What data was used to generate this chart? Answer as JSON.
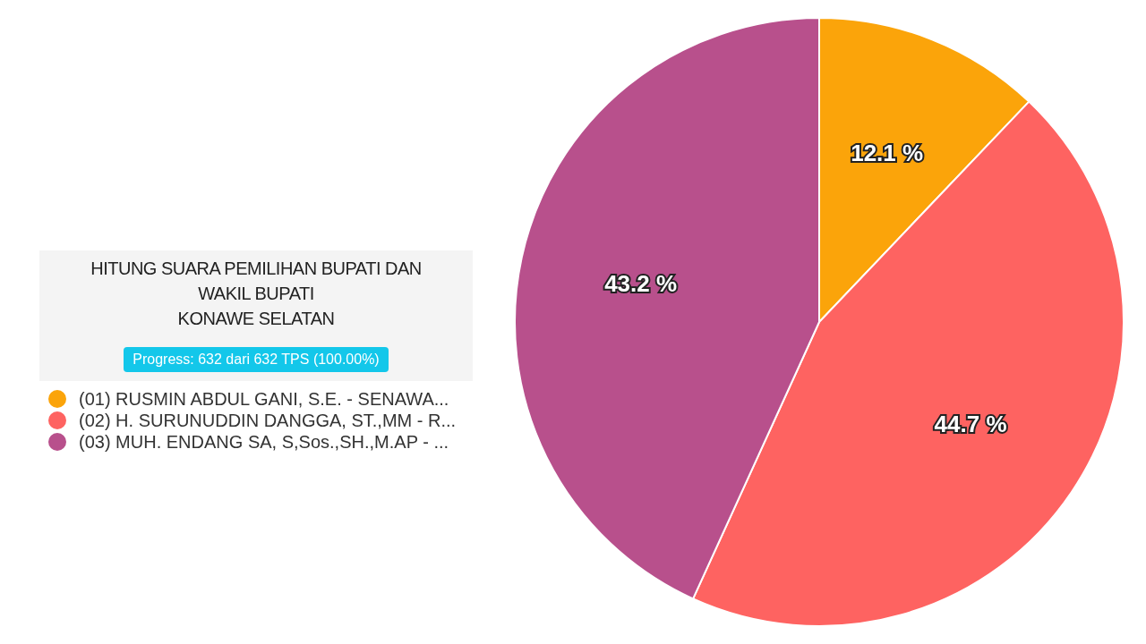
{
  "chart_data": {
    "type": "pie",
    "title": "HITUNG SUARA PEMILIHAN BUPATI DAN WAKIL BUPATI\nKONAWE SELATAN",
    "subtitle": "Progress: 632 dari 632 TPS (100.00%)",
    "categories": [
      "(01) RUSMIN ABDUL GANI, S.E. - SENAWA...",
      "(02) H. SURUNUDDIN DANGGA, ST.,MM - R...",
      "(03) MUH. ENDANG SA, S,Sos.,SH.,M.AP - ..."
    ],
    "values": [
      12.1,
      44.7,
      43.2
    ],
    "colors": [
      "#fba40a",
      "#fe6361",
      "#b8508c"
    ],
    "value_labels": [
      "12.1 %",
      "44.7 %",
      "43.2 %"
    ],
    "legend": "left"
  }
}
